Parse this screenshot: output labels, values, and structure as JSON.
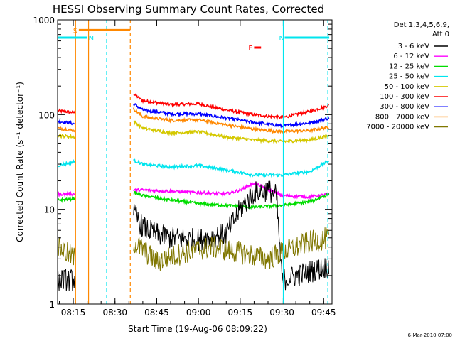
{
  "chart_data": {
    "type": "line",
    "title": "HESSI Observing Summary Count Rates, Corrected",
    "xlabel": "Start Time (19-Aug-06 08:09:22)",
    "ylabel": "Corrected Count Rate (s⁻¹ detector⁻¹)",
    "y_scale": "log",
    "ylim": [
      1,
      1000
    ],
    "xlim": [
      "08:09:22",
      "09:48:00"
    ],
    "x_ticks": [
      "08:15",
      "08:30",
      "08:45",
      "09:00",
      "09:15",
      "09:30",
      "09:45"
    ],
    "y_ticks": [
      "1",
      "10",
      "100",
      "1000"
    ],
    "legend": {
      "placement": "top-right",
      "header": "Det 1,3,4,5,6,9,",
      "subheader": "Att 0",
      "entries": [
        {
          "label": "3 - 6 keV",
          "color": "#000000"
        },
        {
          "label": "6 - 12 keV",
          "color": "#ff00ff"
        },
        {
          "label": "12 - 25 keV",
          "color": "#00dd00"
        },
        {
          "label": "25 - 50 keV",
          "color": "#00e5ee"
        },
        {
          "label": "50 - 100 keV",
          "color": "#d4c800"
        },
        {
          "label": "100 - 300 keV",
          "color": "#ff0000"
        },
        {
          "label": "300 - 800 keV",
          "color": "#0000ff"
        },
        {
          "label": "800 - 7000 keV",
          "color": "#ff8800"
        },
        {
          "label": "7000 - 20000 keV",
          "color": "#807700"
        }
      ]
    },
    "segments": [
      {
        "start": "08:09:22",
        "end": "08:15:50"
      },
      {
        "start": "08:36:40",
        "end": "09:47:00"
      }
    ],
    "series": [
      {
        "name": "100 - 300 keV",
        "color": "#ff0000",
        "x": [
          "08:09:30",
          "08:15:40",
          "08:36:40",
          "08:40",
          "08:50",
          "09:00",
          "09:10",
          "09:20",
          "09:30",
          "09:40",
          "09:47"
        ],
        "y": [
          110,
          105,
          165,
          140,
          128,
          130,
          112,
          100,
          93,
          108,
          125
        ]
      },
      {
        "name": "300 - 800 keV",
        "color": "#0000ff",
        "x": [
          "08:09:30",
          "08:15:40",
          "08:36:40",
          "08:40",
          "08:50",
          "09:00",
          "09:10",
          "09:20",
          "09:30",
          "09:40",
          "09:47"
        ],
        "y": [
          85,
          80,
          130,
          112,
          102,
          102,
          92,
          83,
          76,
          82,
          92
        ]
      },
      {
        "name": "800 - 7000 keV",
        "color": "#ff8800",
        "x": [
          "08:09:30",
          "08:15:40",
          "08:36:40",
          "08:40",
          "08:50",
          "09:00",
          "09:10",
          "09:20",
          "09:30",
          "09:40",
          "09:47"
        ],
        "y": [
          72,
          68,
          115,
          95,
          87,
          88,
          78,
          70,
          66,
          68,
          74
        ]
      },
      {
        "name": "50 - 100 keV",
        "color": "#d4c800",
        "x": [
          "08:09:30",
          "08:15:40",
          "08:36:40",
          "08:40",
          "08:50",
          "09:00",
          "09:10",
          "09:20",
          "09:30",
          "09:40",
          "09:47"
        ],
        "y": [
          60,
          58,
          85,
          72,
          64,
          66,
          58,
          54,
          52,
          54,
          60
        ]
      },
      {
        "name": "25 - 50 keV",
        "color": "#00e5ee",
        "x": [
          "08:09:30",
          "08:15:40",
          "08:36:40",
          "08:40",
          "08:50",
          "09:00",
          "09:10",
          "09:20",
          "09:30",
          "09:40",
          "09:47"
        ],
        "y": [
          29,
          32,
          33,
          30,
          28,
          29,
          26,
          23,
          23,
          25,
          33
        ]
      },
      {
        "name": "6 - 12 keV",
        "color": "#ff00ff",
        "x": [
          "08:09:30",
          "08:15:40",
          "08:36:40",
          "08:40",
          "08:50",
          "09:00",
          "09:10",
          "09:15",
          "09:20",
          "09:30",
          "09:40",
          "09:47"
        ],
        "y": [
          14.5,
          14.5,
          16,
          16,
          15.5,
          15,
          14.5,
          16,
          19,
          14,
          13.5,
          14.5
        ]
      },
      {
        "name": "12 - 25 keV",
        "color": "#00dd00",
        "x": [
          "08:09:30",
          "08:15:40",
          "08:36:40",
          "08:40",
          "08:50",
          "09:00",
          "09:10",
          "09:20",
          "09:30",
          "09:40",
          "09:47"
        ],
        "y": [
          12.5,
          13,
          15,
          14,
          12.5,
          11.5,
          11,
          10.5,
          11,
          12,
          14.5
        ]
      },
      {
        "name": "3 - 6 keV",
        "color": "#000000",
        "x": [
          "08:09:30",
          "08:15:40",
          "08:36:40",
          "08:40",
          "08:45",
          "08:50",
          "09:00",
          "09:10",
          "09:15",
          "09:20",
          "09:25",
          "09:28",
          "09:30",
          "09:40",
          "09:47"
        ],
        "y": [
          1.8,
          1.8,
          9,
          6.5,
          5.5,
          5,
          4.8,
          5.5,
          10,
          15,
          16,
          14,
          1.8,
          2.2,
          2.5
        ]
      },
      {
        "name": "7000 - 20000 keV",
        "color": "#807700",
        "x": [
          "08:09:30",
          "08:15:40",
          "08:36:40",
          "08:45",
          "08:55",
          "09:05",
          "09:15",
          "09:25",
          "09:30",
          "09:40",
          "09:47"
        ],
        "y": [
          4,
          3,
          4.5,
          2.8,
          3.5,
          4,
          3.5,
          3,
          3.5,
          4.5,
          5
        ]
      }
    ],
    "flags": [
      {
        "label": "S",
        "color": "#ff8800",
        "start": "08:17:00",
        "end": "08:35:30",
        "level": 780
      },
      {
        "label": "N",
        "color": "#00e5ee",
        "start": "08:09:22",
        "end": "08:20:00",
        "level": 650
      },
      {
        "label": "N",
        "color": "#00e5ee",
        "start": "09:31:00",
        "end": "09:47:00",
        "level": 650
      },
      {
        "label": "F",
        "color": "#ff0000",
        "start": "09:20:00",
        "end": "09:22:30",
        "level": 510
      }
    ],
    "markers": [
      {
        "time": "08:15:50",
        "color": "#ff8800",
        "style": "solid"
      },
      {
        "time": "08:20:30",
        "color": "#ff8800",
        "style": "solid"
      },
      {
        "time": "08:27:00",
        "color": "#00e5ee",
        "style": "dashed"
      },
      {
        "time": "08:35:30",
        "color": "#ff8800",
        "style": "dashed"
      },
      {
        "time": "09:30:30",
        "color": "#00e5ee",
        "style": "solid"
      },
      {
        "time": "09:46:30",
        "color": "#00e5ee",
        "style": "dashed"
      }
    ],
    "grid": false
  },
  "footer": {
    "date": "6-Mar-2010 07:00"
  }
}
